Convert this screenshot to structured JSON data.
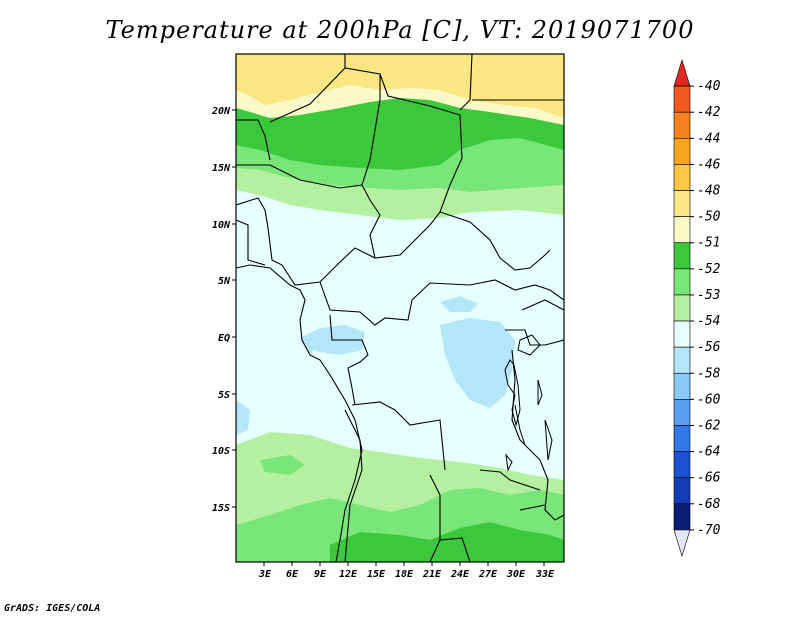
{
  "title": "Temperature at 200hPa [C], VT: 2019071700",
  "credit": "GrADS: IGES/COLA",
  "map": {
    "lat_labels": [
      "20N",
      "15N",
      "10N",
      "5N",
      "EQ",
      "5S",
      "10S",
      "15S"
    ],
    "lon_labels": [
      "3E",
      "6E",
      "9E",
      "12E",
      "15E",
      "18E",
      "21E",
      "24E",
      "27E",
      "30E",
      "33E"
    ]
  },
  "colorbar": {
    "labels": [
      "-40",
      "-42",
      "-44",
      "-46",
      "-48",
      "-50",
      "-51",
      "-52",
      "-53",
      "-54",
      "-56",
      "-58",
      "-60",
      "-62",
      "-64",
      "-66",
      "-68",
      "-70"
    ],
    "colors": [
      "#e0281e",
      "#f05a1e",
      "#f5821e",
      "#faa51e",
      "#fac846",
      "#fae682",
      "#fafac8",
      "#3cc83c",
      "#78e678",
      "#b4f0a0",
      "#e6ffff",
      "#b4e6fa",
      "#8cc8f5",
      "#5aa0f0",
      "#3278e6",
      "#1e50d2",
      "#143cb4",
      "#0a1e78",
      "#000064"
    ]
  }
}
